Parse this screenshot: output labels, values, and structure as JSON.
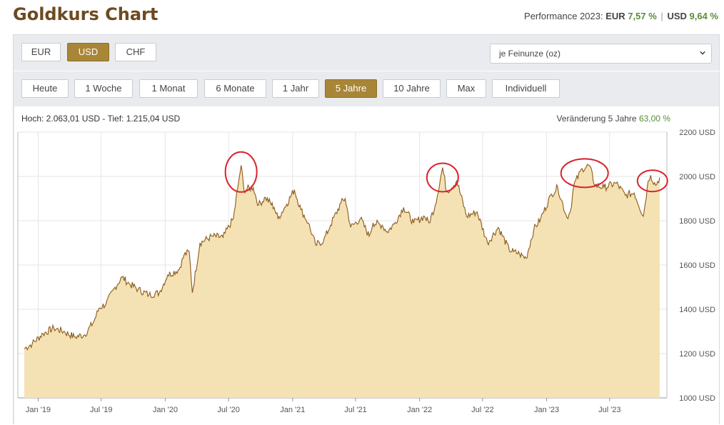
{
  "header": {
    "title": "Goldkurs Chart",
    "performance_label": "Performance 2023:",
    "eur_label": "EUR",
    "eur_value": "7,57 %",
    "separator": "|",
    "usd_label": "USD",
    "usd_value": "9,64 %"
  },
  "currency_buttons": [
    {
      "label": "EUR",
      "active": false
    },
    {
      "label": "USD",
      "active": true
    },
    {
      "label": "CHF",
      "active": false
    }
  ],
  "unit_select": {
    "value": "je Feinunze (oz)"
  },
  "range_buttons": [
    {
      "label": "Heute",
      "active": false
    },
    {
      "label": "1 Woche",
      "active": false
    },
    {
      "label": "1 Monat",
      "active": false
    },
    {
      "label": "6 Monate",
      "active": false
    },
    {
      "label": "1 Jahr",
      "active": false
    },
    {
      "label": "5 Jahre",
      "active": true
    },
    {
      "label": "10 Jahre",
      "active": false
    },
    {
      "label": "Max",
      "active": false
    },
    {
      "label": "Individuell",
      "active": false
    }
  ],
  "chart_info": {
    "high_low": "Hoch: 2.063,01 USD - Tief: 1.215,04 USD",
    "change_label": "Veränderung 5 Jahre",
    "change_value": "63,00 %"
  },
  "colors": {
    "line": "#8a5a1c",
    "fill": "#f5e2b4",
    "highlight_circle": "#d9232b",
    "active_button": "#a88637",
    "title": "#6e4a1f",
    "positive": "#5b8c3a"
  },
  "chart_data": {
    "type": "area",
    "title": "",
    "xlabel": "",
    "ylabel": "",
    "y_unit": "USD",
    "ylim": [
      1000,
      2200
    ],
    "yticks": [
      1000,
      1200,
      1400,
      1600,
      1800,
      2000,
      2200
    ],
    "ytick_labels": [
      "1000 USD",
      "1200 USD",
      "1400 USD",
      "1600 USD",
      "1800 USD",
      "2000 USD",
      "2200 USD"
    ],
    "xlim": [
      "2018-11-22",
      "2023-11-22"
    ],
    "xticks": [
      "2019-01-01",
      "2019-07-01",
      "2020-01-01",
      "2020-07-01",
      "2021-01-01",
      "2021-07-01",
      "2022-01-01",
      "2022-07-01",
      "2023-01-01",
      "2023-07-01"
    ],
    "xtick_labels": [
      "Jan '19",
      "Jul '19",
      "Jan '20",
      "Jul '20",
      "Jan '21",
      "Jul '21",
      "Jan '22",
      "Jul '22",
      "Jan '23",
      "Jul '23"
    ],
    "grid": true,
    "series": [
      {
        "x": [
          "2018-11-22",
          "2018-12-15",
          "2019-01-15",
          "2019-02-15",
          "2019-03-15",
          "2019-04-15",
          "2019-05-15",
          "2019-06-10",
          "2019-06-25",
          "2019-07-15",
          "2019-08-10",
          "2019-08-30",
          "2019-09-20",
          "2019-10-15",
          "2019-11-15",
          "2019-12-15",
          "2020-01-08",
          "2020-02-10",
          "2020-02-24",
          "2020-03-10",
          "2020-03-19",
          "2020-04-10",
          "2020-05-15",
          "2020-06-15",
          "2020-07-15",
          "2020-07-28",
          "2020-08-06",
          "2020-08-14",
          "2020-09-10",
          "2020-09-25",
          "2020-10-15",
          "2020-11-09",
          "2020-11-20",
          "2020-12-15",
          "2021-01-06",
          "2021-01-25",
          "2021-02-15",
          "2021-03-08",
          "2021-03-31",
          "2021-04-20",
          "2021-05-20",
          "2021-06-01",
          "2021-06-17",
          "2021-07-15",
          "2021-08-09",
          "2021-08-20",
          "2021-09-15",
          "2021-09-30",
          "2021-10-20",
          "2021-11-16",
          "2021-12-15",
          "2022-01-15",
          "2022-01-28",
          "2022-02-15",
          "2022-03-08",
          "2022-03-20",
          "2022-04-18",
          "2022-05-16",
          "2022-06-15",
          "2022-07-15",
          "2022-08-15",
          "2022-09-15",
          "2022-09-28",
          "2022-10-15",
          "2022-11-03",
          "2022-11-25",
          "2022-12-15",
          "2023-01-15",
          "2023-02-02",
          "2023-02-28",
          "2023-03-10",
          "2023-03-20",
          "2023-04-13",
          "2023-05-04",
          "2023-05-20",
          "2023-06-15",
          "2023-07-20",
          "2023-08-15",
          "2023-09-10",
          "2023-10-06",
          "2023-10-20",
          "2023-10-27",
          "2023-11-10",
          "2023-11-22"
        ],
        "values": [
          1222,
          1245,
          1290,
          1315,
          1300,
          1275,
          1285,
          1345,
          1405,
          1425,
          1500,
          1545,
          1515,
          1490,
          1465,
          1475,
          1555,
          1580,
          1645,
          1660,
          1475,
          1700,
          1730,
          1725,
          1810,
          1955,
          2050,
          1940,
          1950,
          1870,
          1905,
          1860,
          1810,
          1875,
          1940,
          1850,
          1790,
          1690,
          1710,
          1780,
          1880,
          1900,
          1770,
          1810,
          1730,
          1790,
          1780,
          1750,
          1785,
          1860,
          1790,
          1820,
          1790,
          1870,
          2040,
          1930,
          1980,
          1820,
          1840,
          1700,
          1770,
          1670,
          1660,
          1650,
          1630,
          1760,
          1810,
          1920,
          1950,
          1815,
          1840,
          1960,
          2035,
          2050,
          1960,
          1950,
          1970,
          1915,
          1925,
          1820,
          1980,
          2005,
          1960,
          1995
        ]
      }
    ],
    "annotations": [
      {
        "type": "circle",
        "x": "2020-08-06",
        "y": 2020
      },
      {
        "type": "circle",
        "x": "2022-03-08",
        "y": 1995
      },
      {
        "type": "circle",
        "x": "2023-04-20",
        "y": 2015
      },
      {
        "type": "circle",
        "x": "2023-11-01",
        "y": 1980
      }
    ]
  }
}
